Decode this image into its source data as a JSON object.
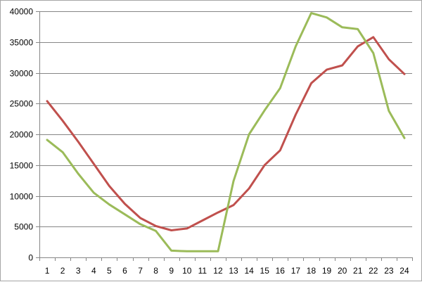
{
  "chart_data": {
    "type": "line",
    "title": "",
    "xlabel": "",
    "ylabel": "",
    "categories": [
      "1",
      "2",
      "3",
      "4",
      "5",
      "6",
      "7",
      "8",
      "9",
      "10",
      "11",
      "12",
      "13",
      "14",
      "15",
      "16",
      "17",
      "18",
      "19",
      "20",
      "21",
      "22",
      "23",
      "24"
    ],
    "ylim": [
      0,
      40000
    ],
    "yticks": [
      0,
      5000,
      10000,
      15000,
      20000,
      25000,
      30000,
      35000,
      40000
    ],
    "grid": "horizontal",
    "legend": "none",
    "series": [
      {
        "color": "#c0504d",
        "values": [
          25400,
          22200,
          18800,
          15200,
          11600,
          8700,
          6400,
          5100,
          4400,
          4700,
          6000,
          7300,
          8500,
          11200,
          15000,
          17400,
          23200,
          28300,
          30500,
          31200,
          34300,
          35800,
          32200,
          29800
        ]
      },
      {
        "color": "#9bbb59",
        "values": [
          19100,
          17100,
          13600,
          10500,
          8600,
          7000,
          5400,
          4300,
          1100,
          1000,
          1000,
          1000,
          12400,
          20000,
          23900,
          27500,
          34300,
          39700,
          39000,
          37400,
          37100,
          33200,
          23800,
          19400
        ]
      }
    ]
  }
}
